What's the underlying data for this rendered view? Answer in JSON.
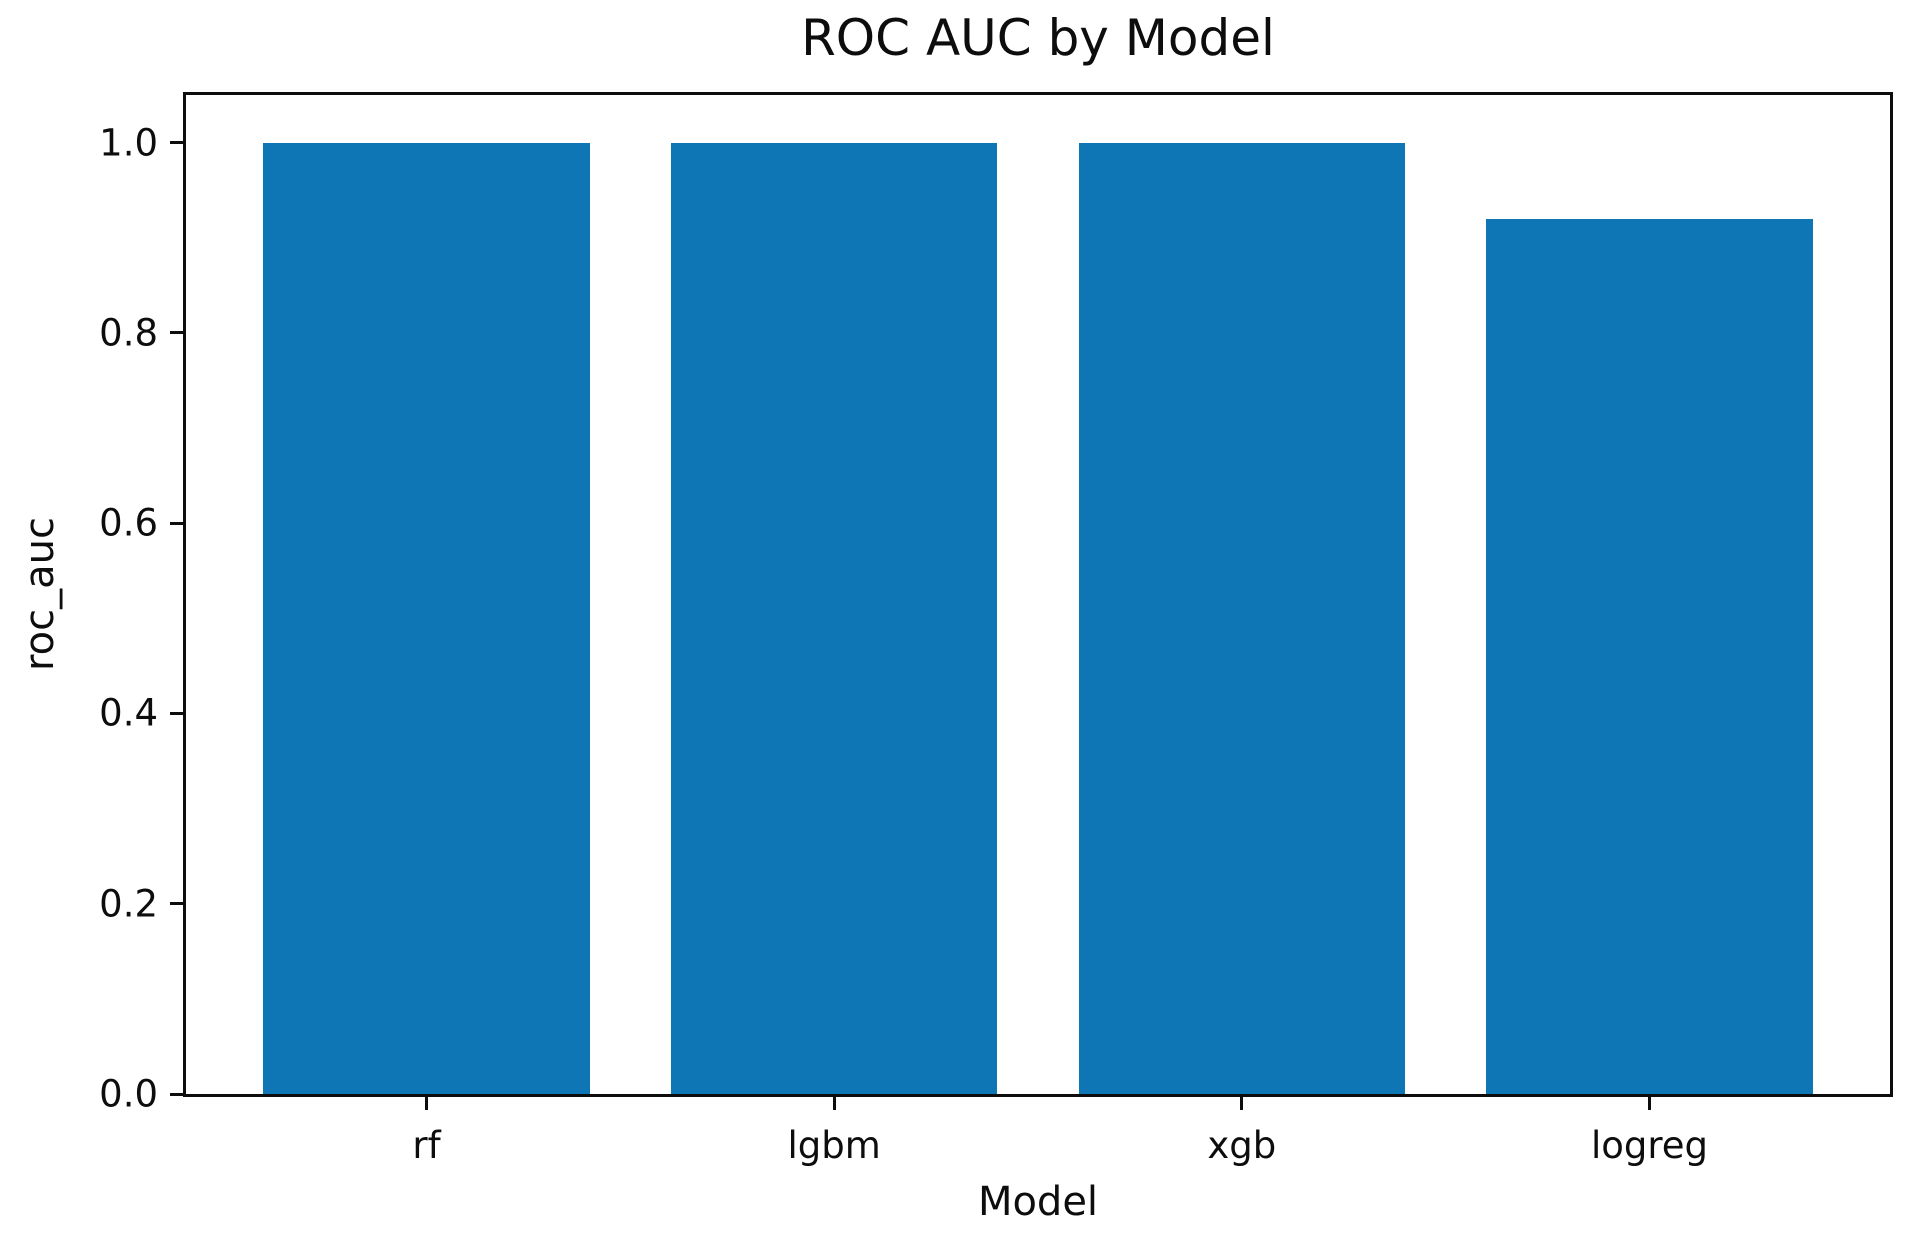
{
  "chart_data": {
    "type": "bar",
    "title": "ROC AUC by Model",
    "xlabel": "Model",
    "ylabel": "roc_auc",
    "categories": [
      "rf",
      "lgbm",
      "xgb",
      "logreg"
    ],
    "values": [
      1.0,
      1.0,
      1.0,
      0.92
    ],
    "ylim": [
      0,
      1.05
    ],
    "yticks": [
      0.0,
      0.2,
      0.4,
      0.6,
      0.8,
      1.0
    ],
    "ytick_labels": [
      "0.0",
      "0.2",
      "0.4",
      "0.6",
      "0.8",
      "1.0"
    ],
    "bar_color": "#0f76b6",
    "bar_width_fraction": 0.8,
    "grid": false,
    "legend_position": "none"
  }
}
